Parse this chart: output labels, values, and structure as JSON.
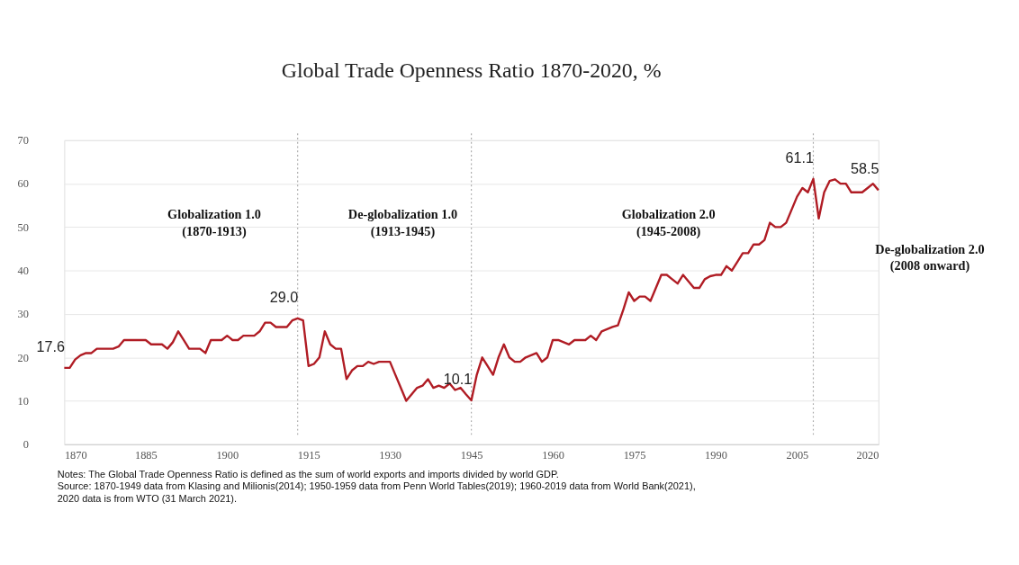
{
  "chart_data": {
    "type": "line",
    "title": "Global Trade Openness Ratio 1870-2020, %",
    "x": [
      1870,
      1871,
      1872,
      1873,
      1874,
      1875,
      1876,
      1877,
      1878,
      1879,
      1880,
      1881,
      1882,
      1883,
      1884,
      1885,
      1886,
      1887,
      1888,
      1889,
      1890,
      1891,
      1892,
      1893,
      1894,
      1895,
      1896,
      1897,
      1898,
      1899,
      1900,
      1901,
      1902,
      1903,
      1904,
      1905,
      1906,
      1907,
      1908,
      1909,
      1910,
      1911,
      1912,
      1913,
      1914,
      1915,
      1916,
      1917,
      1918,
      1919,
      1920,
      1921,
      1922,
      1923,
      1924,
      1925,
      1926,
      1927,
      1928,
      1929,
      1930,
      1931,
      1932,
      1933,
      1934,
      1935,
      1936,
      1937,
      1938,
      1939,
      1940,
      1941,
      1942,
      1943,
      1944,
      1945,
      1946,
      1947,
      1948,
      1949,
      1950,
      1951,
      1952,
      1953,
      1954,
      1955,
      1956,
      1957,
      1958,
      1959,
      1960,
      1961,
      1962,
      1963,
      1964,
      1965,
      1966,
      1967,
      1968,
      1969,
      1970,
      1971,
      1972,
      1973,
      1974,
      1975,
      1976,
      1977,
      1978,
      1979,
      1980,
      1981,
      1982,
      1983,
      1984,
      1985,
      1986,
      1987,
      1988,
      1989,
      1990,
      1991,
      1992,
      1993,
      1994,
      1995,
      1996,
      1997,
      1998,
      1999,
      2000,
      2001,
      2002,
      2003,
      2004,
      2005,
      2006,
      2007,
      2008,
      2009,
      2010,
      2011,
      2012,
      2013,
      2014,
      2015,
      2016,
      2017,
      2018,
      2019,
      2020
    ],
    "series": [
      {
        "color": "#b01c24",
        "values": [
          17.6,
          17.6,
          19.5,
          20.5,
          21,
          21,
          22,
          22,
          22,
          22,
          22.5,
          24,
          24,
          24,
          24,
          24,
          23,
          23,
          23,
          22,
          23.5,
          26,
          24,
          22,
          22,
          22,
          21,
          24,
          24,
          24,
          25,
          24,
          24,
          25,
          25,
          25,
          26,
          28,
          28,
          27,
          27,
          27,
          28.5,
          29.0,
          28.5,
          18,
          18.5,
          20,
          26,
          23,
          22,
          22,
          15,
          17,
          18,
          18,
          19,
          18.5,
          19,
          19,
          19,
          16,
          13,
          10,
          11.5,
          13,
          13.5,
          15,
          13,
          13.5,
          13,
          14,
          12.5,
          13,
          11.5,
          10.1,
          16,
          20,
          18,
          16,
          20,
          23,
          20,
          19,
          19,
          20,
          20.5,
          21,
          19,
          20,
          24,
          24,
          23.5,
          23,
          24,
          24,
          24,
          25,
          24,
          26,
          26.5,
          27,
          27.4,
          31,
          35,
          33,
          34,
          34,
          33,
          36,
          39,
          39,
          38,
          37,
          39,
          37.5,
          36,
          36,
          38,
          38.7,
          39,
          39,
          41,
          40,
          42,
          44,
          44,
          46,
          46,
          47,
          51,
          50,
          50,
          51,
          54,
          57,
          59,
          58,
          61.1,
          52,
          58,
          60.6,
          61,
          60,
          60,
          58,
          58,
          58,
          59,
          60,
          58.5
        ],
        "value_labels": [
          "17.6",
          null,
          null,
          null,
          null,
          null,
          null,
          null,
          null,
          null,
          null,
          null,
          null,
          null,
          null,
          null,
          null,
          null,
          null,
          null,
          null,
          null,
          null,
          null,
          null,
          null,
          null,
          null,
          null,
          null,
          null,
          null,
          null,
          null,
          null,
          null,
          null,
          null,
          null,
          null,
          null,
          null,
          null,
          "29.0",
          null,
          null,
          null,
          null,
          null,
          null,
          null,
          null,
          null,
          null,
          null,
          null,
          null,
          null,
          null,
          null,
          null,
          null,
          null,
          null,
          null,
          null,
          null,
          null,
          null,
          null,
          null,
          null,
          null,
          null,
          null,
          "10.1",
          null,
          null,
          null,
          null,
          null,
          null,
          null,
          null,
          null,
          null,
          null,
          null,
          null,
          null,
          null,
          null,
          null,
          null,
          null,
          null,
          null,
          null,
          null,
          null,
          null,
          null,
          null,
          null,
          null,
          null,
          null,
          null,
          null,
          null,
          null,
          null,
          null,
          null,
          null,
          null,
          null,
          null,
          null,
          null,
          null,
          null,
          null,
          null,
          null,
          null,
          null,
          null,
          null,
          null,
          null,
          null,
          null,
          null,
          null,
          null,
          null,
          null,
          "61.1",
          null,
          null,
          null,
          null,
          null,
          null,
          null,
          null,
          null,
          null,
          null,
          "58.5"
        ]
      }
    ],
    "xlim": [
      1870,
      2020
    ],
    "xticks": [
      1870,
      1885,
      1900,
      1915,
      1930,
      1945,
      1960,
      1975,
      1990,
      2005,
      2020
    ],
    "ylim": [
      0,
      70
    ],
    "yticks": [
      0,
      10,
      20,
      30,
      40,
      50,
      60,
      70
    ],
    "grid": "y",
    "marker": "none",
    "line_style": "solid",
    "ref_lines": [
      {
        "axis": "x",
        "value": 1913,
        "color": "#aaaaaa",
        "line_style": "dotted"
      },
      {
        "axis": "x",
        "value": 1945,
        "color": "#aaaaaa",
        "line_style": "dotted"
      },
      {
        "axis": "x",
        "value": 2008,
        "color": "#aaaaaa",
        "line_style": "dotted"
      }
    ],
    "annotations": [
      "Globalization 1.0\n(1870-1913)",
      "De-globalization 1.0\n(1913-1945)",
      "Globalization 2.0\n(1945-2008)",
      "De-globalization 2.0\n(2008 onward)",
      "Notes: The Global Trade Openness Ratio is defined as the sum of world exports and imports divided by world GDP.",
      "Source: 1870-1949 data from Klasing and Milionis(2014); 1950-1959 data from Penn World Tables(2019); 1960-2019 data from World Bank(2021),",
      "2020 data is from WTO (31 March 2021)."
    ]
  }
}
